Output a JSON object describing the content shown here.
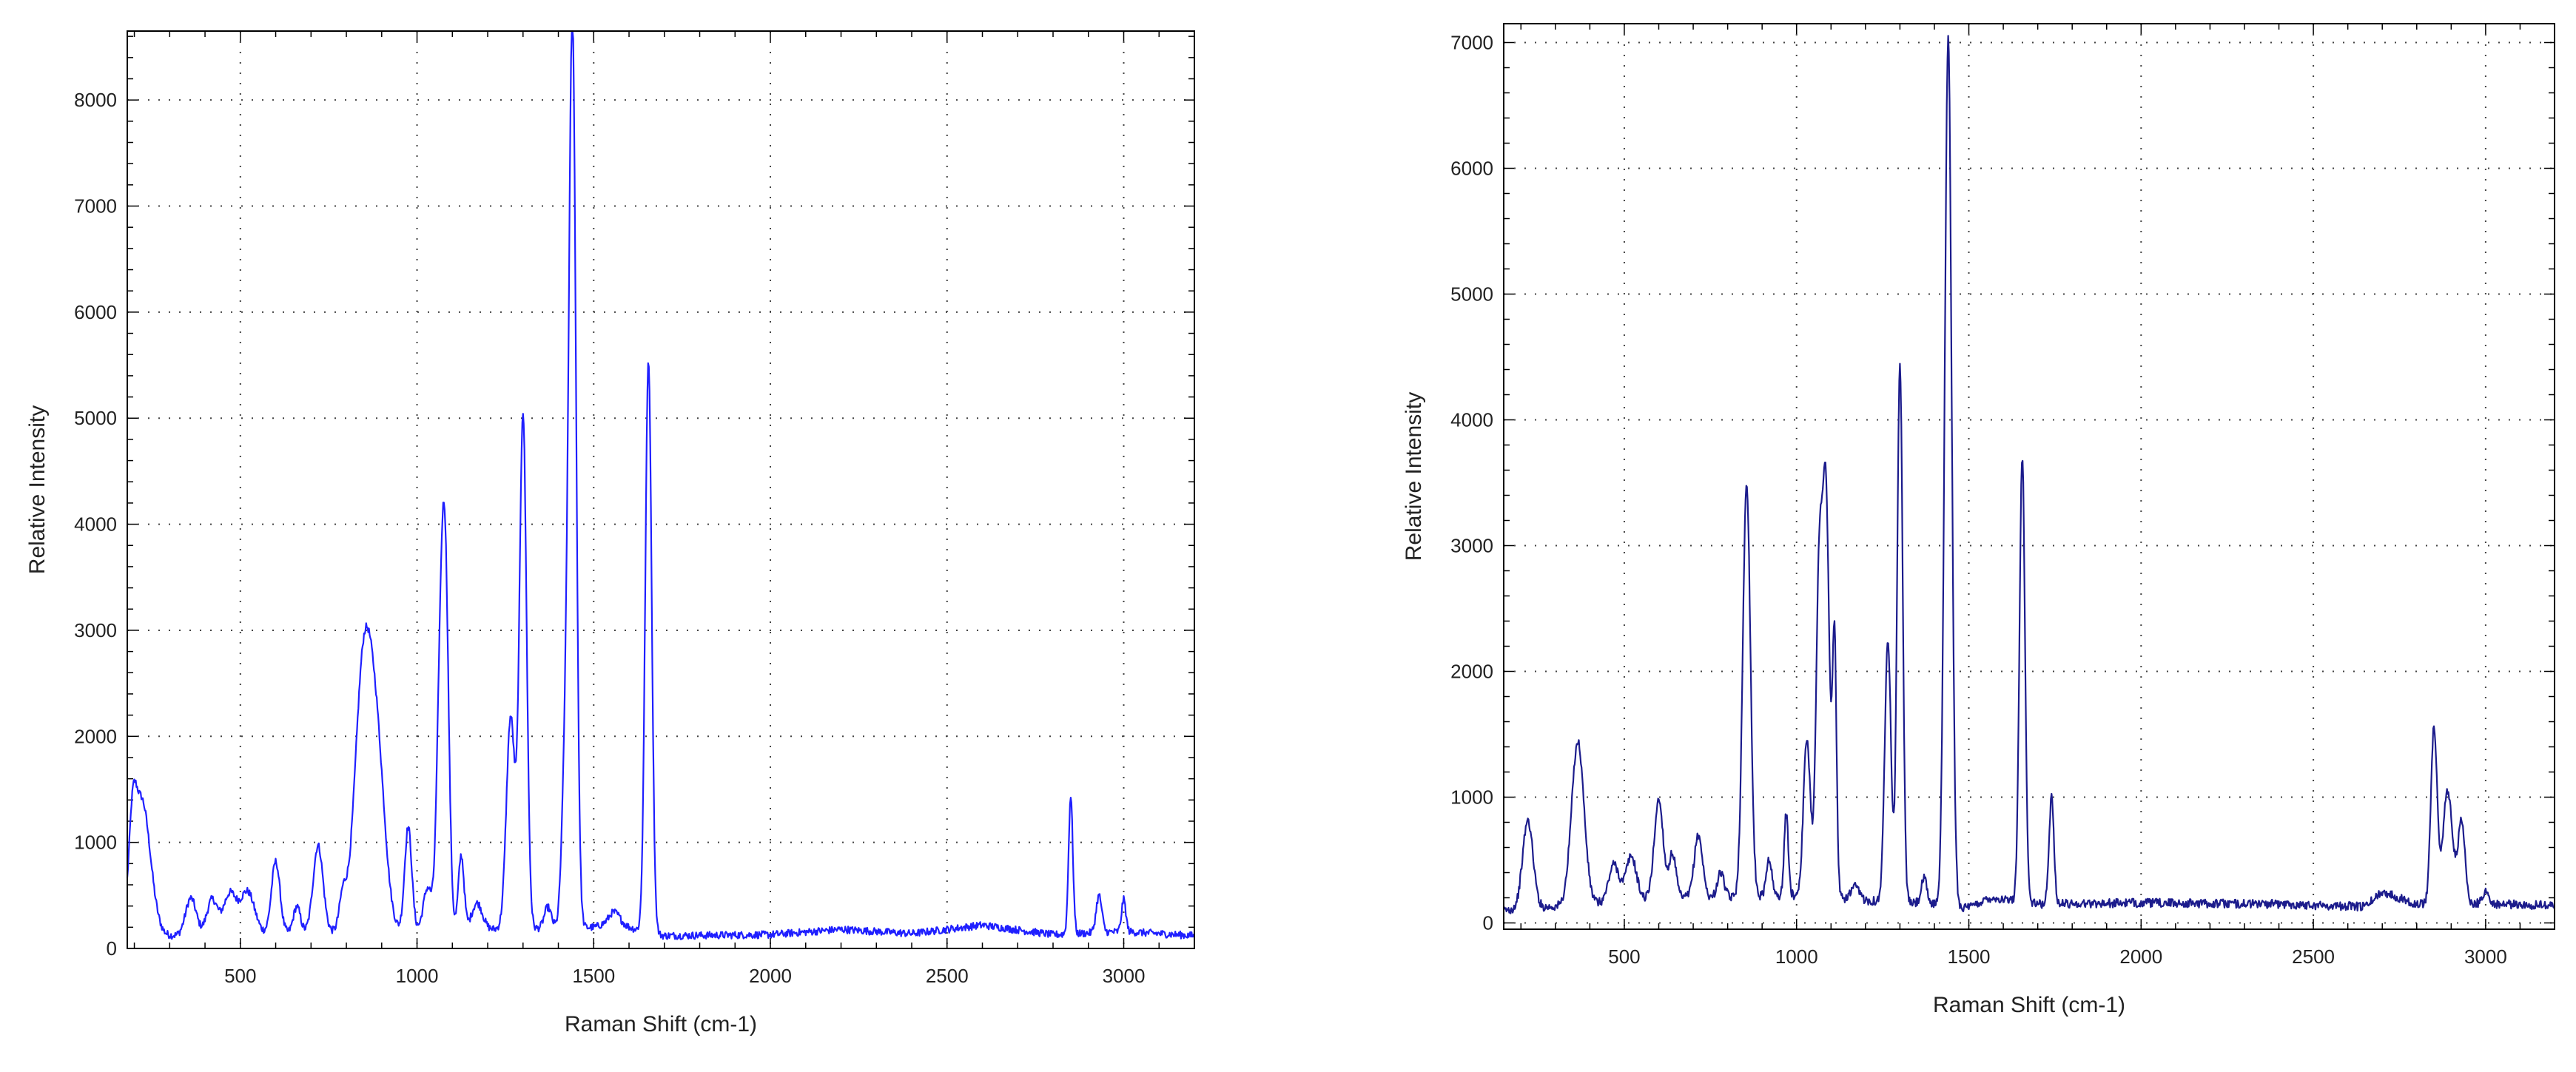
{
  "chart_data": [
    {
      "type": "line",
      "title": "",
      "xlabel": "Raman Shift (cm-1)",
      "ylabel": "Relative Intensity",
      "xlim": [
        180,
        3200
      ],
      "ylim": [
        0,
        8650
      ],
      "xticks": [
        500,
        1000,
        1500,
        2000,
        2500,
        3000
      ],
      "yticks": [
        0,
        1000,
        2000,
        3000,
        4000,
        5000,
        6000,
        7000,
        8000
      ],
      "grid": true,
      "color": "#1f1fff",
      "baseline": [
        [
          180,
          100
        ],
        [
          300,
          120
        ],
        [
          600,
          140
        ],
        [
          700,
          150
        ],
        [
          1000,
          170
        ],
        [
          1200,
          180
        ],
        [
          1400,
          190
        ],
        [
          1500,
          200
        ],
        [
          1550,
          250
        ],
        [
          1650,
          150
        ],
        [
          1700,
          120
        ],
        [
          2000,
          130
        ],
        [
          2200,
          180
        ],
        [
          2400,
          140
        ],
        [
          2600,
          220
        ],
        [
          2800,
          130
        ],
        [
          3000,
          160
        ],
        [
          3200,
          120
        ]
      ],
      "peaks": [
        {
          "x": 195,
          "y": 600,
          "w": 10
        },
        {
          "x": 220,
          "y": 1300,
          "w": 25
        },
        {
          "x": 360,
          "y": 350,
          "w": 15
        },
        {
          "x": 420,
          "y": 330,
          "w": 15
        },
        {
          "x": 470,
          "y": 380,
          "w": 18
        },
        {
          "x": 520,
          "y": 400,
          "w": 20
        },
        {
          "x": 600,
          "y": 680,
          "w": 12
        },
        {
          "x": 660,
          "y": 250,
          "w": 10
        },
        {
          "x": 720,
          "y": 820,
          "w": 14
        },
        {
          "x": 790,
          "y": 300,
          "w": 10
        },
        {
          "x": 850,
          "y": 2550,
          "w": 25
        },
        {
          "x": 890,
          "y": 1300,
          "w": 22
        },
        {
          "x": 975,
          "y": 980,
          "w": 10
        },
        {
          "x": 1030,
          "y": 400,
          "w": 12
        },
        {
          "x": 1065,
          "y": 2000,
          "w": 10
        },
        {
          "x": 1080,
          "y": 3200,
          "w": 10
        },
        {
          "x": 1125,
          "y": 700,
          "w": 8
        },
        {
          "x": 1170,
          "y": 250,
          "w": 15
        },
        {
          "x": 1265,
          "y": 2000,
          "w": 12
        },
        {
          "x": 1300,
          "y": 4850,
          "w": 10
        },
        {
          "x": 1370,
          "y": 200,
          "w": 10
        },
        {
          "x": 1420,
          "y": 1500,
          "w": 10
        },
        {
          "x": 1440,
          "y": 8450,
          "w": 10
        },
        {
          "x": 1560,
          "y": 100,
          "w": 15
        },
        {
          "x": 1655,
          "y": 5400,
          "w": 9
        },
        {
          "x": 2850,
          "y": 1300,
          "w": 6
        },
        {
          "x": 2930,
          "y": 350,
          "w": 8
        },
        {
          "x": 3000,
          "y": 300,
          "w": 6
        }
      ]
    },
    {
      "type": "line",
      "title": "",
      "xlabel": "Raman Shift (cm-1)",
      "ylabel": "Relative Intensity",
      "xlim": [
        150,
        3200
      ],
      "ylim": [
        -50,
        7150
      ],
      "xticks": [
        500,
        1000,
        1500,
        2000,
        2500,
        3000
      ],
      "yticks": [
        0,
        1000,
        2000,
        3000,
        4000,
        5000,
        6000,
        7000
      ],
      "grid": true,
      "color": "#1c1c8c",
      "baseline": [
        [
          150,
          100
        ],
        [
          400,
          150
        ],
        [
          600,
          200
        ],
        [
          800,
          200
        ],
        [
          1000,
          220
        ],
        [
          1200,
          180
        ],
        [
          1400,
          150
        ],
        [
          1500,
          120
        ],
        [
          1560,
          200
        ],
        [
          1700,
          150
        ],
        [
          2000,
          160
        ],
        [
          2400,
          150
        ],
        [
          2650,
          130
        ],
        [
          2700,
          250
        ],
        [
          2800,
          150
        ],
        [
          3000,
          150
        ],
        [
          3200,
          140
        ]
      ],
      "peaks": [
        {
          "x": 220,
          "y": 700,
          "w": 15
        },
        {
          "x": 365,
          "y": 1300,
          "w": 18
        },
        {
          "x": 470,
          "y": 300,
          "w": 15
        },
        {
          "x": 520,
          "y": 350,
          "w": 15
        },
        {
          "x": 600,
          "y": 780,
          "w": 13
        },
        {
          "x": 640,
          "y": 350,
          "w": 10
        },
        {
          "x": 715,
          "y": 500,
          "w": 12
        },
        {
          "x": 780,
          "y": 200,
          "w": 10
        },
        {
          "x": 855,
          "y": 3300,
          "w": 11
        },
        {
          "x": 920,
          "y": 300,
          "w": 8
        },
        {
          "x": 970,
          "y": 650,
          "w": 6
        },
        {
          "x": 1030,
          "y": 1250,
          "w": 10
        },
        {
          "x": 1065,
          "y": 2400,
          "w": 9
        },
        {
          "x": 1085,
          "y": 3200,
          "w": 10
        },
        {
          "x": 1110,
          "y": 2050,
          "w": 6
        },
        {
          "x": 1170,
          "y": 100,
          "w": 12
        },
        {
          "x": 1265,
          "y": 2100,
          "w": 9
        },
        {
          "x": 1300,
          "y": 4280,
          "w": 8
        },
        {
          "x": 1370,
          "y": 200,
          "w": 8
        },
        {
          "x": 1440,
          "y": 6900,
          "w": 10
        },
        {
          "x": 1655,
          "y": 3550,
          "w": 8
        },
        {
          "x": 1740,
          "y": 850,
          "w": 7
        },
        {
          "x": 2850,
          "y": 1400,
          "w": 9
        },
        {
          "x": 2890,
          "y": 900,
          "w": 14
        },
        {
          "x": 2930,
          "y": 650,
          "w": 10
        },
        {
          "x": 3000,
          "y": 100,
          "w": 10
        }
      ]
    }
  ]
}
